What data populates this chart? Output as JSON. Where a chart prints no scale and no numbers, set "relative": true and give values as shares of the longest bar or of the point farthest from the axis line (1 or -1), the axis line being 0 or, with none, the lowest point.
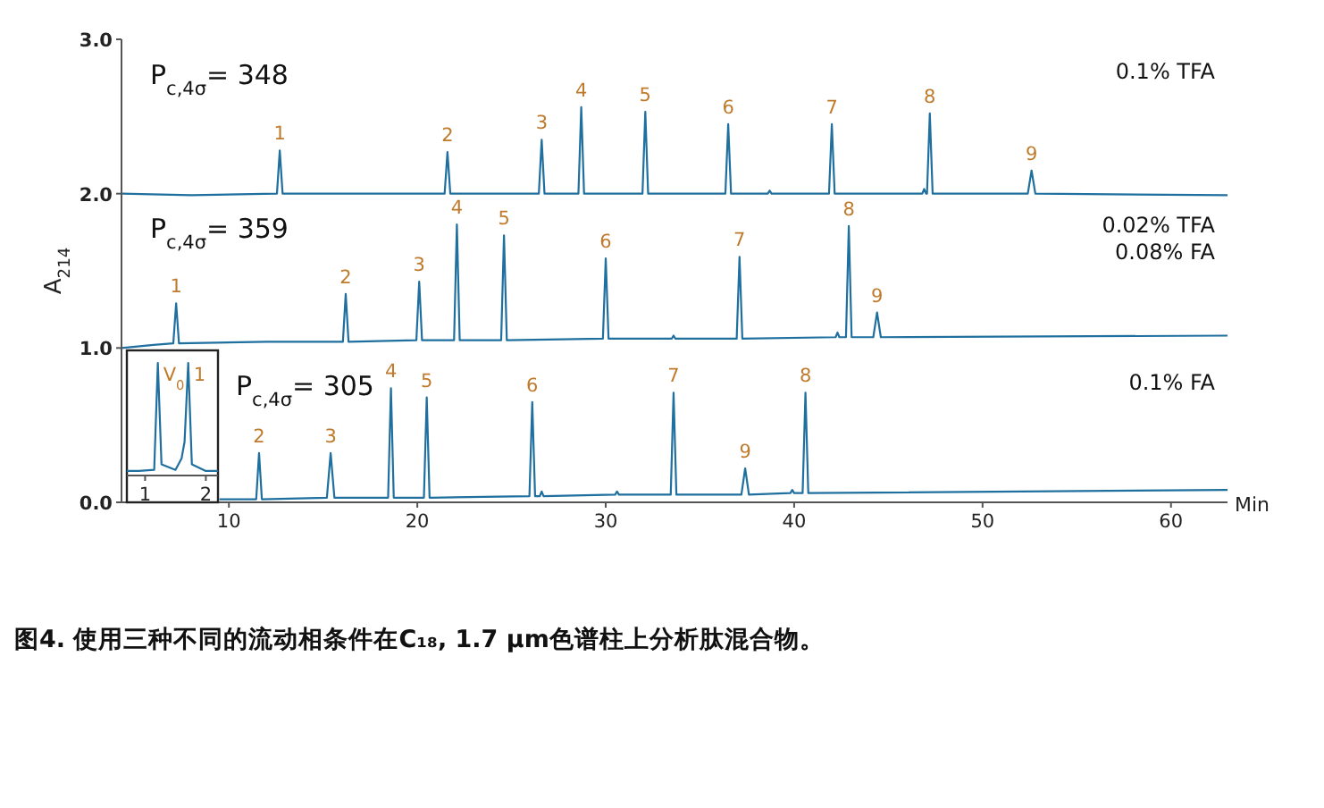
{
  "chart_data": [
    {
      "type": "line",
      "xlabel": "Min",
      "ylabel": "A$_{214}$",
      "xlim": [
        4.3,
        63
      ],
      "ylim": [
        0,
        3
      ],
      "xticks": [
        10,
        20,
        30,
        40,
        50,
        60
      ],
      "yticks": [
        {
          "value": 0,
          "label": "0.0"
        },
        {
          "value": 1,
          "label": "1.0"
        },
        {
          "value": 2,
          "label": "2.0"
        },
        {
          "value": 3,
          "label": "3.0"
        }
      ],
      "grid": false,
      "series": [
        {
          "color": "#1f6f9f",
          "x": [
            4.3,
            8,
            12.55,
            12.7,
            12.85,
            17,
            21.45,
            21.6,
            21.75,
            26.45,
            26.6,
            26.75,
            28.55,
            28.7,
            28.85,
            31.95,
            32.1,
            32.25,
            36.35,
            36.5,
            36.65,
            38.6,
            38.7,
            38.8,
            41.85,
            42.0,
            42.15,
            46.8,
            46.9,
            47.0,
            47.05,
            47.2,
            47.35,
            52.4,
            52.6,
            52.8,
            63
          ],
          "values": [
            2.0,
            1.99,
            2.0,
            2.28,
            2.0,
            2.0,
            2.0,
            2.27,
            2.0,
            2.0,
            2.35,
            2.0,
            2.0,
            2.56,
            2.0,
            2.0,
            2.53,
            2.0,
            2.0,
            2.45,
            2.0,
            2.0,
            2.02,
            2.0,
            2.0,
            2.45,
            2.0,
            2.0,
            2.03,
            2.0,
            2.0,
            2.52,
            2.0,
            2.0,
            2.15,
            2.0,
            1.99
          ]
        },
        {
          "color": "#1f6f9f",
          "x": [
            4.3,
            6,
            7.05,
            7.2,
            7.35,
            12,
            16.05,
            16.2,
            16.35,
            19.95,
            20.1,
            20.25,
            21.95,
            22.1,
            22.25,
            24.45,
            24.6,
            24.75,
            29.85,
            30.0,
            30.15,
            33.5,
            33.6,
            33.7,
            36.95,
            37.1,
            37.25,
            42.2,
            42.3,
            42.4,
            42.75,
            42.9,
            43.05,
            44.2,
            44.4,
            44.6,
            63
          ],
          "values": [
            1.0,
            1.02,
            1.03,
            1.29,
            1.03,
            1.04,
            1.04,
            1.35,
            1.04,
            1.05,
            1.43,
            1.05,
            1.05,
            1.8,
            1.05,
            1.05,
            1.73,
            1.05,
            1.06,
            1.58,
            1.06,
            1.06,
            1.08,
            1.06,
            1.06,
            1.59,
            1.06,
            1.07,
            1.1,
            1.07,
            1.07,
            1.79,
            1.07,
            1.07,
            1.23,
            1.07,
            1.08
          ]
        },
        {
          "color": "#1f6f9f",
          "x": [
            9.5,
            11.45,
            11.6,
            11.75,
            15.2,
            15.4,
            15.6,
            18.45,
            18.6,
            18.75,
            20.35,
            20.5,
            20.65,
            25.95,
            26.1,
            26.25,
            26.5,
            26.6,
            26.7,
            30.5,
            30.6,
            30.7,
            33.45,
            33.6,
            33.75,
            37.2,
            37.4,
            37.6,
            39.8,
            39.9,
            40.0,
            40.45,
            40.6,
            40.75,
            63
          ],
          "values": [
            0.02,
            0.02,
            0.32,
            0.02,
            0.03,
            0.32,
            0.03,
            0.03,
            0.74,
            0.03,
            0.03,
            0.68,
            0.03,
            0.04,
            0.65,
            0.04,
            0.04,
            0.07,
            0.04,
            0.05,
            0.07,
            0.05,
            0.05,
            0.71,
            0.05,
            0.05,
            0.22,
            0.05,
            0.06,
            0.08,
            0.06,
            0.06,
            0.71,
            0.06,
            0.08
          ]
        }
      ],
      "annotations": [
        "P$_{c,4σ}$= 348",
        "0.1% TFA",
        "P$_{c,4σ}$= 359",
        "0.02% TFA",
        "0.08% FA",
        "P$_{c,4σ}$= 305",
        "0.1% FA",
        "图4. 使用三种不同的流动相条件在C₁₈, 1.7 µm色谱柱上分析肽混合物。",
        {
          "text": "1",
          "x": 12.7,
          "y": 2.28
        },
        {
          "text": "2",
          "x": 21.6,
          "y": 2.27
        },
        {
          "text": "3",
          "x": 26.6,
          "y": 2.35
        },
        {
          "text": "4",
          "x": 28.7,
          "y": 2.56
        },
        {
          "text": "5",
          "x": 32.1,
          "y": 2.53
        },
        {
          "text": "6",
          "x": 36.5,
          "y": 2.45
        },
        {
          "text": "7",
          "x": 42.0,
          "y": 2.45
        },
        {
          "text": "8",
          "x": 47.2,
          "y": 2.52
        },
        {
          "text": "9",
          "x": 52.6,
          "y": 2.15
        },
        {
          "text": "1",
          "x": 7.2,
          "y": 1.29
        },
        {
          "text": "2",
          "x": 16.2,
          "y": 1.35
        },
        {
          "text": "3",
          "x": 20.1,
          "y": 1.43
        },
        {
          "text": "4",
          "x": 22.1,
          "y": 1.8
        },
        {
          "text": "5",
          "x": 24.6,
          "y": 1.73
        },
        {
          "text": "6",
          "x": 30.0,
          "y": 1.58
        },
        {
          "text": "7",
          "x": 37.1,
          "y": 1.59
        },
        {
          "text": "8",
          "x": 42.9,
          "y": 1.79
        },
        {
          "text": "9",
          "x": 44.4,
          "y": 1.23
        },
        {
          "text": "2",
          "x": 11.6,
          "y": 0.32
        },
        {
          "text": "3",
          "x": 15.4,
          "y": 0.32
        },
        {
          "text": "4",
          "x": 18.6,
          "y": 0.74
        },
        {
          "text": "5",
          "x": 20.5,
          "y": 0.68
        },
        {
          "text": "6",
          "x": 26.1,
          "y": 0.65
        },
        {
          "text": "7",
          "x": 33.6,
          "y": 0.71
        },
        {
          "text": "8",
          "x": 40.6,
          "y": 0.71
        },
        {
          "text": "9",
          "x": 37.4,
          "y": 0.22
        }
      ]
    },
    {
      "type": "line",
      "relative": true,
      "xlim": [
        0.7,
        2.2
      ],
      "xticks": [
        1,
        2
      ],
      "tick_labels": "x",
      "series": [
        {
          "color": "#1f6f9f",
          "x": [
            0.7,
            0.9,
            1.15,
            1.21,
            1.27,
            1.5,
            1.6,
            1.65,
            1.71,
            1.77,
            2.0,
            2.2
          ],
          "values": [
            0.04,
            0.04,
            0.05,
            1,
            0.1,
            0.05,
            0.15,
            0.3,
            1,
            0.1,
            0.04,
            0.04
          ]
        }
      ],
      "annotations": [
        {
          "text": "V$_{0}$",
          "x": 1.21,
          "y": 1
        },
        {
          "text": "1",
          "x": 1.71,
          "y": 1
        }
      ]
    }
  ]
}
